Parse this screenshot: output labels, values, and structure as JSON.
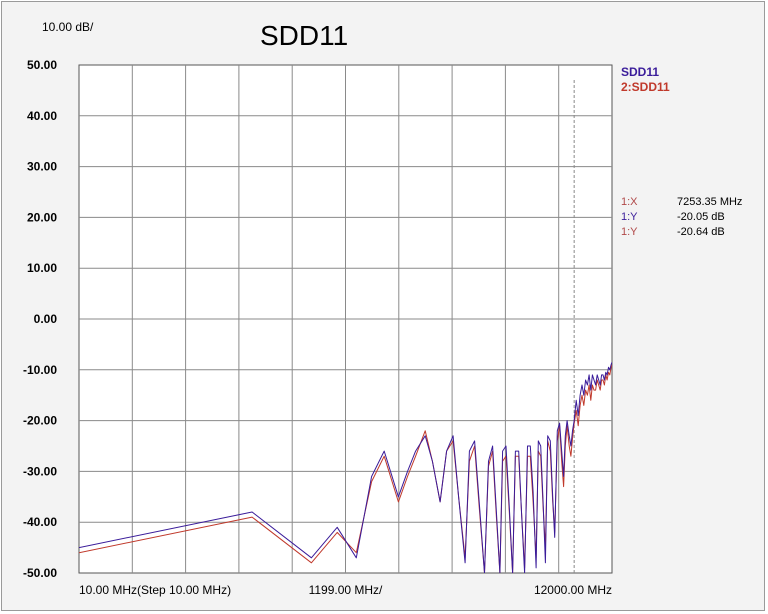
{
  "scale_label": "10.00 dB/",
  "chart_data": {
    "type": "line",
    "title": "SDD11",
    "xlabel": "",
    "ylabel": "",
    "ylim": [
      -50,
      50
    ],
    "y_ticks": [
      "50.00",
      "40.00",
      "30.00",
      "20.00",
      "10.00",
      "0.00",
      "-10.00",
      "-20.00",
      "-30.00",
      "-40.00",
      "-50.00"
    ],
    "x_tick_labels": [
      {
        "text": "10.00 MHz(Step 10.00 MHz)",
        "align": "start"
      },
      {
        "text": "1199.00 MHz/",
        "align": "center"
      },
      {
        "text": "12000.00 MHz",
        "align": "end"
      }
    ],
    "xlim": [
      10,
      12000
    ],
    "grid": true,
    "legend_position": "top-right",
    "series": [
      {
        "name": "SDD11",
        "color": "#3a1c9a",
        "x": [
          10,
          100,
          220,
          310,
          400,
          490,
          580,
          700,
          790,
          880,
          1000,
          1100,
          1220,
          1330,
          1450,
          1560,
          1700,
          1800,
          1930,
          2050,
          2200,
          2320,
          2450,
          2580,
          2700,
          2800,
          2930,
          3060,
          3200,
          3320,
          3470,
          3600,
          3750,
          3900,
          4050,
          4200,
          4370,
          4500,
          4650,
          4800,
          4950,
          5100,
          5280,
          5450,
          5600,
          5800,
          5980,
          6150,
          6300,
          6450,
          6600,
          6790,
          6950,
          7100,
          7253,
          7450,
          7650,
          7850,
          8050,
          8250,
          8450,
          8650,
          8850,
          9050,
          9250,
          9450,
          9650,
          9850,
          10050,
          10250,
          10450,
          10650,
          10850,
          11050,
          11250,
          11450,
          11650,
          11850,
          12000
        ],
        "values": [
          -45,
          -38,
          -47,
          -41,
          -47,
          -31,
          -26,
          -35,
          -30,
          -26,
          -23,
          -28,
          -36,
          -26,
          -23,
          -35,
          -48,
          -26,
          -24,
          -36,
          -50,
          -28,
          -25,
          -38,
          -50,
          -26,
          -25,
          -37,
          -50,
          -26,
          -26,
          -38,
          -50,
          -25,
          -25,
          -34,
          -49,
          -24,
          -25,
          -36,
          -48,
          -23,
          -24,
          -35,
          -43,
          -22,
          -20.5,
          -26,
          -31,
          -23,
          -20,
          -23,
          -25,
          -22,
          -20.05,
          -16,
          -19,
          -15,
          -13,
          -15,
          -12,
          -13,
          -11,
          -14,
          -11,
          -12,
          -13,
          -11,
          -12,
          -13,
          -11,
          -11,
          -12,
          -10.5,
          -11,
          -9.5,
          -10,
          -9,
          -8.5
        ]
      },
      {
        "name": "2:SDD11",
        "color": "#c0392b",
        "x": [
          10,
          100,
          220,
          310,
          400,
          490,
          580,
          700,
          790,
          880,
          1000,
          1100,
          1220,
          1330,
          1450,
          1560,
          1700,
          1800,
          1930,
          2050,
          2200,
          2320,
          2450,
          2580,
          2700,
          2800,
          2930,
          3060,
          3200,
          3320,
          3470,
          3600,
          3750,
          3900,
          4050,
          4200,
          4370,
          4500,
          4650,
          4800,
          4950,
          5100,
          5280,
          5450,
          5600,
          5800,
          5980,
          6150,
          6300,
          6450,
          6600,
          6790,
          6950,
          7100,
          7253,
          7450,
          7650,
          7850,
          8050,
          8250,
          8450,
          8650,
          8850,
          9050,
          9250,
          9450,
          9650,
          9850,
          10050,
          10250,
          10450,
          10650,
          10850,
          11050,
          11250,
          11450,
          11650,
          11850,
          12000
        ],
        "values": [
          -46,
          -39,
          -48,
          -42,
          -46,
          -32,
          -27,
          -36,
          -31,
          -27,
          -22,
          -28,
          -36,
          -26,
          -24,
          -35,
          -47,
          -28,
          -25,
          -37,
          -50,
          -29,
          -26,
          -39,
          -50,
          -28,
          -27,
          -38,
          -50,
          -27,
          -27,
          -38,
          -49,
          -27,
          -27,
          -36,
          -47,
          -26,
          -27,
          -37,
          -45,
          -24,
          -26,
          -36,
          -42,
          -24,
          -21,
          -28,
          -33,
          -25,
          -21,
          -25,
          -27,
          -23.5,
          -20.64,
          -18,
          -21,
          -17,
          -15,
          -17,
          -14,
          -15,
          -13,
          -16,
          -13,
          -14,
          -14,
          -12,
          -13,
          -14,
          -12,
          -12,
          -13,
          -11,
          -12,
          -10.5,
          -11,
          -9.5,
          -9
        ]
      }
    ],
    "marker": {
      "x_value": 7253.35,
      "readouts": [
        {
          "label": "1:X",
          "value": "7253.35 MHz",
          "color": "#b04848"
        },
        {
          "label": "1:Y",
          "value": "-20.05 dB",
          "color": "#3a1c9a"
        },
        {
          "label": "1:Y",
          "value": "-20.64 dB",
          "color": "#b04848"
        }
      ]
    }
  }
}
